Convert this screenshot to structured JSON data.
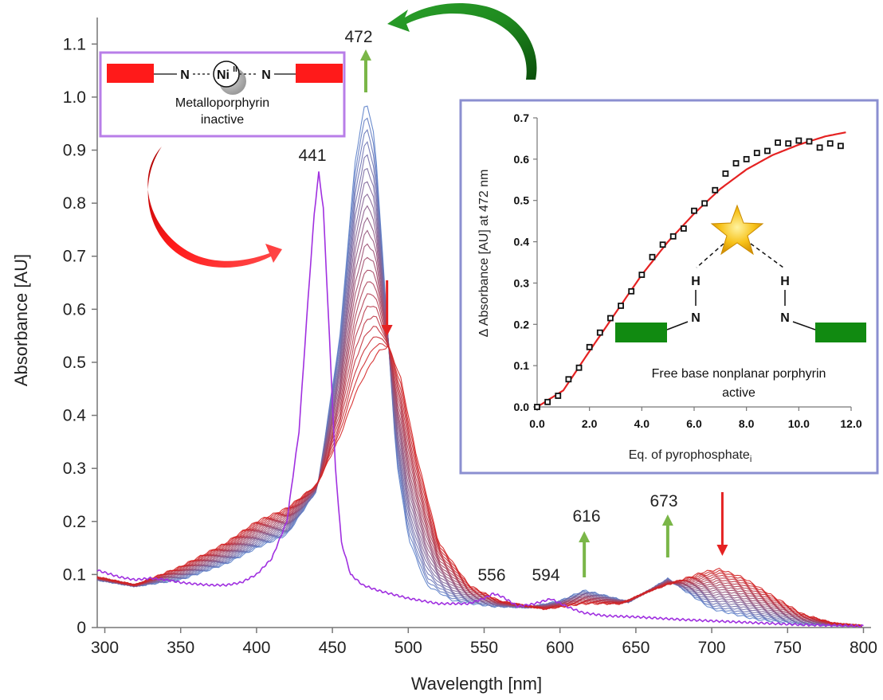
{
  "chart_data": [
    {
      "type": "line",
      "title": "",
      "xlabel": "Wavelength [nm]",
      "ylabel": "Absorbance [AU]",
      "xlim": [
        295,
        805
      ],
      "ylim": [
        0,
        1.15
      ],
      "xticks": [
        300,
        350,
        400,
        450,
        500,
        550,
        600,
        650,
        700,
        750,
        800
      ],
      "yticks": [
        {
          "value": 0,
          "label": "0"
        },
        {
          "value": 0.1,
          "label": "0.1"
        },
        {
          "value": 0.2,
          "label": "0.2"
        },
        {
          "value": 0.3,
          "label": "0.3"
        },
        {
          "value": 0.4,
          "label": "0.4"
        },
        {
          "value": 0.5,
          "label": "0.5"
        },
        {
          "value": 0.6,
          "label": "0.6"
        },
        {
          "value": 0.7,
          "label": "0.7"
        },
        {
          "value": 0.8,
          "label": "0.8"
        },
        {
          "value": 0.9,
          "label": "0.9"
        },
        {
          "value": 1.0,
          "label": "1.0"
        },
        {
          "value": 1.1,
          "label": "1.1"
        }
      ],
      "grid": false,
      "legend": "none",
      "metalloporphyrin_series": {
        "color": "#a030e0",
        "points": [
          [
            295,
            0.108
          ],
          [
            310,
            0.095
          ],
          [
            320,
            0.09
          ],
          [
            330,
            0.093
          ],
          [
            340,
            0.09
          ],
          [
            350,
            0.085
          ],
          [
            360,
            0.082
          ],
          [
            370,
            0.08
          ],
          [
            380,
            0.08
          ],
          [
            390,
            0.085
          ],
          [
            400,
            0.1
          ],
          [
            410,
            0.13
          ],
          [
            420,
            0.2
          ],
          [
            428,
            0.37
          ],
          [
            434,
            0.62
          ],
          [
            438,
            0.78
          ],
          [
            441,
            0.858
          ],
          [
            444,
            0.79
          ],
          [
            448,
            0.55
          ],
          [
            452,
            0.3
          ],
          [
            456,
            0.16
          ],
          [
            462,
            0.1
          ],
          [
            470,
            0.08
          ],
          [
            480,
            0.07
          ],
          [
            500,
            0.055
          ],
          [
            520,
            0.045
          ],
          [
            540,
            0.045
          ],
          [
            550,
            0.055
          ],
          [
            556,
            0.064
          ],
          [
            562,
            0.058
          ],
          [
            572,
            0.04
          ],
          [
            582,
            0.044
          ],
          [
            594,
            0.054
          ],
          [
            604,
            0.04
          ],
          [
            615,
            0.028
          ],
          [
            630,
            0.022
          ],
          [
            650,
            0.02
          ],
          [
            680,
            0.015
          ],
          [
            720,
            0.01
          ],
          [
            760,
            0.005
          ],
          [
            800,
            0.003
          ]
        ]
      },
      "titration_series": {
        "count": 22,
        "color_start": "#5b7fc9",
        "color_end": "#d42020",
        "start_points": [
          [
            295,
            0.09
          ],
          [
            320,
            0.078
          ],
          [
            350,
            0.09
          ],
          [
            380,
            0.12
          ],
          [
            400,
            0.15
          ],
          [
            420,
            0.175
          ],
          [
            440,
            0.26
          ],
          [
            455,
            0.55
          ],
          [
            465,
            0.88
          ],
          [
            472,
            0.998
          ],
          [
            478,
            0.92
          ],
          [
            485,
            0.62
          ],
          [
            492,
            0.32
          ],
          [
            500,
            0.17
          ],
          [
            512,
            0.08
          ],
          [
            530,
            0.05
          ],
          [
            555,
            0.04
          ],
          [
            580,
            0.038
          ],
          [
            600,
            0.05
          ],
          [
            616,
            0.07
          ],
          [
            630,
            0.06
          ],
          [
            645,
            0.048
          ],
          [
            660,
            0.072
          ],
          [
            671,
            0.092
          ],
          [
            682,
            0.07
          ],
          [
            700,
            0.035
          ],
          [
            730,
            0.015
          ],
          [
            760,
            0.006
          ],
          [
            800,
            0.003
          ]
        ],
        "end_points": [
          [
            295,
            0.095
          ],
          [
            320,
            0.08
          ],
          [
            350,
            0.115
          ],
          [
            380,
            0.16
          ],
          [
            400,
            0.2
          ],
          [
            420,
            0.225
          ],
          [
            440,
            0.27
          ],
          [
            455,
            0.36
          ],
          [
            465,
            0.44
          ],
          [
            472,
            0.48
          ],
          [
            480,
            0.52
          ],
          [
            487,
            0.53
          ],
          [
            495,
            0.47
          ],
          [
            505,
            0.33
          ],
          [
            520,
            0.16
          ],
          [
            540,
            0.08
          ],
          [
            560,
            0.05
          ],
          [
            590,
            0.035
          ],
          [
            616,
            0.045
          ],
          [
            640,
            0.045
          ],
          [
            660,
            0.07
          ],
          [
            680,
            0.09
          ],
          [
            695,
            0.105
          ],
          [
            705,
            0.11
          ],
          [
            720,
            0.095
          ],
          [
            740,
            0.06
          ],
          [
            760,
            0.025
          ],
          [
            780,
            0.008
          ],
          [
            800,
            0.003
          ]
        ]
      },
      "peak_annotations": [
        "441",
        "472",
        "556",
        "594",
        "616",
        "673"
      ],
      "trend_arrows": [
        {
          "x": 472,
          "direction": "up",
          "color": "#7ab648"
        },
        {
          "x": 486,
          "direction": "down",
          "color": "#e52222"
        },
        {
          "x": 616,
          "direction": "up",
          "color": "#7ab648"
        },
        {
          "x": 671,
          "direction": "up",
          "color": "#7ab648"
        },
        {
          "x": 707,
          "direction": "down",
          "color": "#e52222"
        }
      ]
    },
    {
      "type": "scatter",
      "xlabel": "Eq. of pyrophosphate",
      "xlabel_subscript": "i",
      "ylabel": "Δ Absorbance [AU] at 472 nm",
      "xlim": [
        0,
        12
      ],
      "ylim": [
        0,
        0.7
      ],
      "xticks": [
        "0.0",
        "2.0",
        "4.0",
        "6.0",
        "8.0",
        "10.0",
        "12.0"
      ],
      "yticks": [
        "0.0",
        "0.1",
        "0.2",
        "0.3",
        "0.4",
        "0.5",
        "0.6",
        "0.7"
      ],
      "points": [
        [
          0,
          0.0
        ],
        [
          0.4,
          0.012
        ],
        [
          0.8,
          0.027
        ],
        [
          1.2,
          0.067
        ],
        [
          1.6,
          0.095
        ],
        [
          2.0,
          0.145
        ],
        [
          2.4,
          0.18
        ],
        [
          2.8,
          0.215
        ],
        [
          3.2,
          0.245
        ],
        [
          3.6,
          0.28
        ],
        [
          4.0,
          0.32
        ],
        [
          4.4,
          0.363
        ],
        [
          4.8,
          0.393
        ],
        [
          5.2,
          0.413
        ],
        [
          5.6,
          0.432
        ],
        [
          6.0,
          0.475
        ],
        [
          6.4,
          0.493
        ],
        [
          6.8,
          0.525
        ],
        [
          7.2,
          0.565
        ],
        [
          7.6,
          0.59
        ],
        [
          8.0,
          0.6
        ],
        [
          8.4,
          0.615
        ],
        [
          8.8,
          0.62
        ],
        [
          9.2,
          0.64
        ],
        [
          9.6,
          0.638
        ],
        [
          10.0,
          0.645
        ],
        [
          10.4,
          0.643
        ],
        [
          10.8,
          0.628
        ],
        [
          11.2,
          0.638
        ],
        [
          11.6,
          0.632
        ]
      ],
      "fit": {
        "color": "#e52222",
        "points": [
          [
            0,
            0.0
          ],
          [
            1,
            0.04
          ],
          [
            2,
            0.135
          ],
          [
            3,
            0.228
          ],
          [
            4,
            0.32
          ],
          [
            5,
            0.4
          ],
          [
            6,
            0.468
          ],
          [
            7,
            0.528
          ],
          [
            8,
            0.575
          ],
          [
            9,
            0.61
          ],
          [
            10,
            0.635
          ],
          [
            11,
            0.655
          ],
          [
            11.8,
            0.665
          ]
        ]
      }
    }
  ],
  "labels": {
    "xlabel": "Wavelength [nm]",
    "ylabel": "Absorbance [AU]",
    "p441": "441",
    "p472": "472",
    "p556": "556",
    "p594": "594",
    "p616": "616",
    "p673": "673"
  },
  "inset": {
    "ylabel": "Δ Absorbance [AU] at 472 nm",
    "xlabel_main": "Eq. of pyrophosphate",
    "xlabel_sub": "i",
    "caption": "Free base nonplanar porphyrin",
    "status": "active",
    "atom_n": "N",
    "atom_h": "H"
  },
  "metal_box": {
    "metal": "Ni",
    "oxidation": "II",
    "atom_n": "N",
    "caption": "Metalloporphyrin",
    "status": "inactive"
  },
  "colors": {
    "metallo": "#a030e0",
    "fit": "#e52222",
    "active": "#1a8a1a",
    "inactive": "#e52222",
    "inset_border": "#8b8fd0",
    "metal_border": "#b87ee8",
    "arrow_green": "#1f7a1f"
  }
}
